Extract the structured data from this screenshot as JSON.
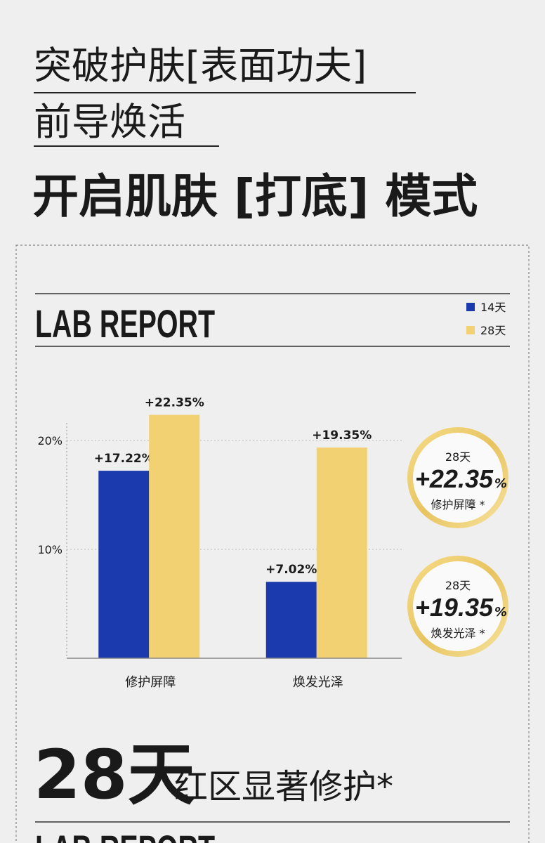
{
  "header": {
    "line1": "突破护肤[表面功夫]",
    "line2": "前导焕活",
    "headline": "开启肌肤 [打底] 模式"
  },
  "report_title": "LAB REPORT",
  "chart_data": {
    "type": "bar",
    "categories": [
      "修护屏障",
      "焕发光泽"
    ],
    "series": [
      {
        "name": "14天",
        "color": "#1a3aae",
        "values": [
          17.22,
          7.02
        ],
        "value_labels": [
          "+17.22%",
          "+7.02%"
        ]
      },
      {
        "name": "28天",
        "color": "#f2d172",
        "values": [
          22.35,
          19.35
        ],
        "value_labels": [
          "+22.35%",
          "+19.35%"
        ]
      }
    ],
    "ylim": [
      0,
      22
    ],
    "yticks": [
      {
        "value": 10,
        "label": "10%"
      },
      {
        "value": 20,
        "label": "20%"
      }
    ],
    "grid": true,
    "legend": "top-right"
  },
  "callouts": [
    {
      "period": "28天",
      "value": "+22.35",
      "unit": "%",
      "label": "修护屏障 *"
    },
    {
      "period": "28天",
      "value": "+19.35",
      "unit": "%",
      "label": "焕发光泽 *"
    }
  ],
  "footer": {
    "days": "28天",
    "text": "红区显著修护*",
    "next_title": "LAB REPORT"
  }
}
